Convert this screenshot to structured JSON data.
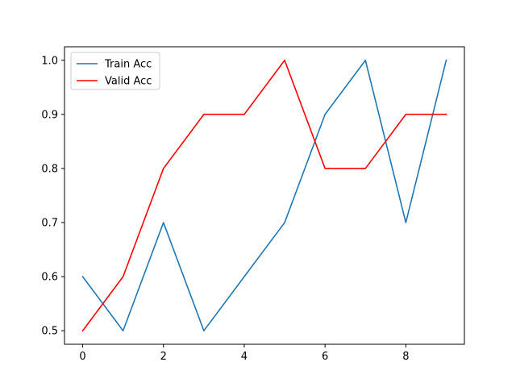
{
  "chart_data": {
    "type": "line",
    "x": [
      0,
      1,
      2,
      3,
      4,
      5,
      6,
      7,
      8,
      9
    ],
    "series": [
      {
        "name": "Train Acc",
        "color": "#1f77b4",
        "values": [
          0.6,
          0.5,
          0.7,
          0.5,
          0.6,
          0.7,
          0.9,
          1.0,
          0.7,
          1.0
        ]
      },
      {
        "name": "Valid Acc",
        "color": "#ff0000",
        "values": [
          0.5,
          0.6,
          0.8,
          0.9,
          0.9,
          1.0,
          0.8,
          0.8,
          0.9,
          0.9
        ]
      }
    ],
    "xlim": [
      -0.45,
      9.45
    ],
    "ylim": [
      0.475,
      1.025
    ],
    "xticks": [
      0,
      2,
      4,
      6,
      8
    ],
    "xtick_labels": [
      "0",
      "2",
      "4",
      "6",
      "8"
    ],
    "yticks": [
      0.5,
      0.6,
      0.7,
      0.8,
      0.9,
      1.0
    ],
    "ytick_labels": [
      "0.5",
      "0.6",
      "0.7",
      "0.8",
      "0.9",
      "1.0"
    ],
    "grid": false,
    "legend_position": "top-left"
  }
}
